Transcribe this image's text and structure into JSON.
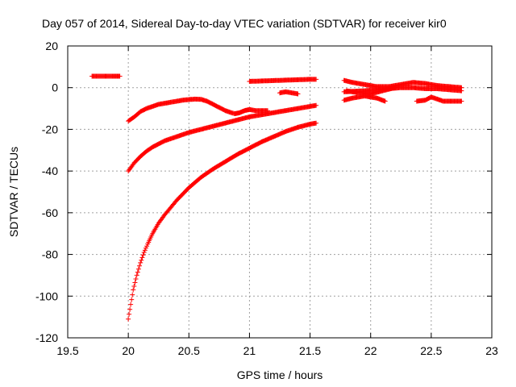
{
  "chart_data": {
    "type": "scatter",
    "title": "Day 057 of 2014, Sidereal Day-to-day VTEC variation (SDTVAR) for receiver kir0",
    "xlabel": "GPS time / hours",
    "ylabel": "SDTVAR / TECUs",
    "xlim": [
      19.5,
      23
    ],
    "ylim": [
      -120,
      20
    ],
    "xticks": [
      19.5,
      20,
      20.5,
      21,
      21.5,
      22,
      22.5,
      23
    ],
    "xtick_labels": [
      "19.5",
      "20",
      "20.5",
      "21",
      "21.5",
      "22",
      "22.5",
      "23"
    ],
    "yticks": [
      -120,
      -100,
      -80,
      -60,
      -40,
      -20,
      0,
      20
    ],
    "ytick_labels": [
      "-120",
      "-100",
      "-80",
      "-60",
      "-40",
      "-20",
      "0",
      "20"
    ],
    "grid": true,
    "marker": "+",
    "color": "#ff0000",
    "series": [
      {
        "name": "s1",
        "x": [
          19.7,
          19.78,
          19.86,
          19.93
        ],
        "y": [
          5.5,
          5.5,
          5.5,
          5.5
        ]
      },
      {
        "name": "s2",
        "x": [
          20.0,
          20.05,
          20.1,
          20.15,
          20.2,
          20.25,
          20.3,
          20.35,
          20.4,
          20.45,
          20.5,
          20.55,
          20.6,
          20.65,
          20.7,
          20.75,
          20.8,
          20.85,
          20.88,
          20.92,
          20.96,
          21.0,
          21.05,
          21.1,
          21.15
        ],
        "y": [
          -16,
          -14,
          -11.5,
          -10,
          -9,
          -8,
          -7.5,
          -7,
          -6.5,
          -6,
          -5.7,
          -5.5,
          -5.6,
          -6.5,
          -8,
          -9.5,
          -11,
          -12,
          -12.5,
          -12,
          -11,
          -10.5,
          -11,
          -11,
          -11
        ]
      },
      {
        "name": "s3",
        "x": [
          20.0,
          20.05,
          20.1,
          20.15,
          20.2,
          20.25,
          20.3,
          20.4,
          20.5,
          20.6,
          20.7,
          20.8,
          20.9,
          21.0,
          21.1,
          21.2,
          21.3,
          21.4,
          21.5,
          21.55
        ],
        "y": [
          -40,
          -36,
          -33,
          -30.5,
          -28.5,
          -27,
          -25.5,
          -23.5,
          -21.5,
          -20,
          -18.5,
          -17,
          -15.5,
          -14,
          -13,
          -12,
          -11,
          -10,
          -9,
          -8.5
        ]
      },
      {
        "name": "s4",
        "x": [
          20.0,
          20.02,
          20.04,
          20.07,
          20.1,
          20.13,
          20.16,
          20.2,
          20.25,
          20.3,
          20.35,
          20.4,
          20.45,
          20.5,
          20.55,
          20.6,
          20.7,
          20.8,
          20.9,
          21.0,
          21.1,
          21.2,
          21.3,
          21.4,
          21.5,
          21.55
        ],
        "y": [
          -111,
          -104,
          -97,
          -90,
          -84,
          -79,
          -75,
          -70,
          -65,
          -61,
          -57.5,
          -54,
          -51,
          -48,
          -45.5,
          -43,
          -39,
          -35.5,
          -32,
          -29,
          -26,
          -23.5,
          -21,
          -19,
          -17.5,
          -17
        ]
      },
      {
        "name": "s5",
        "x": [
          21.0,
          21.1,
          21.2,
          21.3,
          21.4,
          21.5,
          21.55
        ],
        "y": [
          3,
          3.2,
          3.4,
          3.6,
          3.8,
          4,
          4
        ]
      },
      {
        "name": "s6",
        "x": [
          21.25,
          21.3,
          21.35,
          21.4
        ],
        "y": [
          -2.5,
          -2,
          -2.5,
          -3
        ]
      },
      {
        "name": "s7",
        "x": [
          21.78,
          21.85,
          21.95,
          22.05,
          22.15,
          22.25,
          22.35,
          22.45,
          22.55,
          22.65,
          22.75
        ],
        "y": [
          3.5,
          2.5,
          1.5,
          0.5,
          0.5,
          1.5,
          2.5,
          2,
          1,
          0.5,
          0
        ]
      },
      {
        "name": "s8",
        "x": [
          21.78,
          21.85,
          21.95,
          22.05,
          22.15,
          22.25,
          22.35,
          22.45,
          22.55,
          22.65,
          22.75
        ],
        "y": [
          -2,
          -1.8,
          -1.5,
          -1,
          -0.5,
          0,
          0,
          -0.5,
          -0.5,
          -1,
          -1.5
        ]
      },
      {
        "name": "s9",
        "x": [
          21.78,
          21.85,
          21.95,
          22.05,
          22.12
        ],
        "y": [
          -6,
          -5,
          -4,
          -5,
          -6.5
        ]
      },
      {
        "name": "s10",
        "x": [
          21.8,
          21.9,
          22.0,
          22.1,
          22.2
        ],
        "y": [
          -1.5,
          -2.5,
          -3,
          -1.5,
          0
        ]
      },
      {
        "name": "s11",
        "x": [
          22.38,
          22.45,
          22.5,
          22.55,
          22.6,
          22.65,
          22.75
        ],
        "y": [
          -6.5,
          -6,
          -4.5,
          -5.5,
          -6.5,
          -6.5,
          -6.5
        ]
      }
    ]
  }
}
